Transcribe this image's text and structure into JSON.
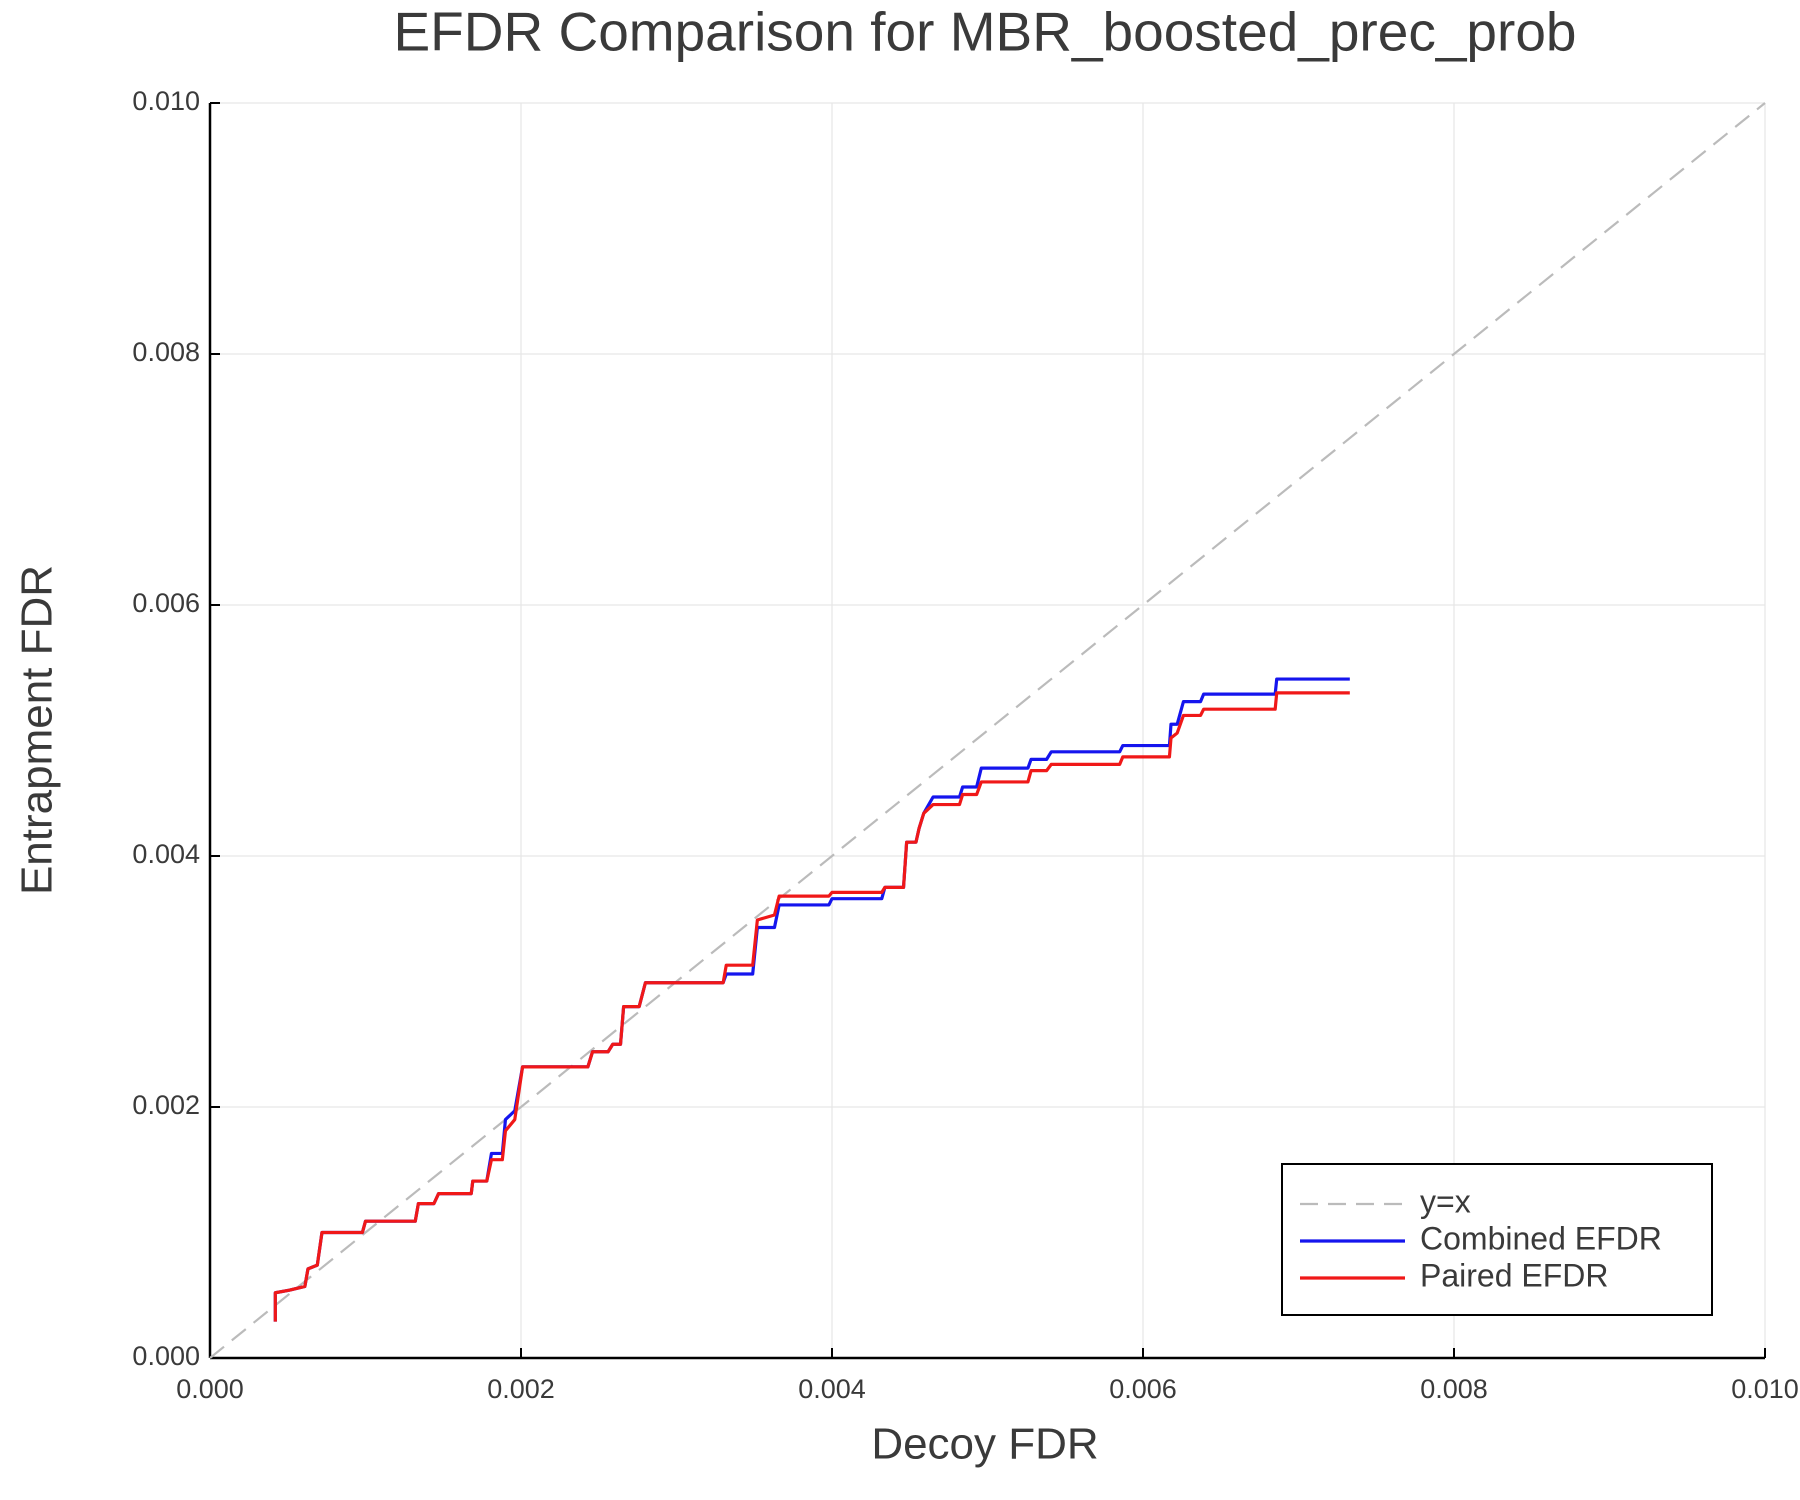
{
  "chart_data": {
    "type": "line",
    "title": "EFDR Comparison for MBR_boosted_prec_prob",
    "x_label": "Decoy FDR",
    "y_label": "Entrapment FDR",
    "xlim": [
      0,
      0.01
    ],
    "ylim": [
      0,
      0.01
    ],
    "xticks": [
      {
        "value": 0,
        "label": "0.000"
      },
      {
        "value": 0.002,
        "label": "0.002"
      },
      {
        "value": 0.004,
        "label": "0.004"
      },
      {
        "value": 0.006,
        "label": "0.006"
      },
      {
        "value": 0.008,
        "label": "0.008"
      },
      {
        "value": 0.01,
        "label": "0.010"
      }
    ],
    "yticks": [
      {
        "value": 0,
        "label": "0.000"
      },
      {
        "value": 0.002,
        "label": "0.002"
      },
      {
        "value": 0.004,
        "label": "0.004"
      },
      {
        "value": 0.006,
        "label": "0.006"
      },
      {
        "value": 0.008,
        "label": "0.008"
      },
      {
        "value": 0.01,
        "label": "0.010"
      }
    ],
    "grid": true,
    "legend_position": "bottom-right",
    "series": [
      {
        "name": "y=x",
        "color": "#bbbbbb",
        "style": "dash",
        "x": [
          0,
          0.01
        ],
        "values": [
          0,
          0.01
        ]
      },
      {
        "name": "Combined EFDR",
        "color": "#1515ee",
        "style": "solid",
        "x": [
          0.00042,
          0.00042,
          0.00051,
          0.00061,
          0.00063,
          0.00069,
          0.00072,
          0.00098,
          0.001,
          0.00132,
          0.00134,
          0.00144,
          0.00147,
          0.00168,
          0.00169,
          0.00178,
          0.00181,
          0.00188,
          0.0019,
          0.00196,
          0.00201,
          0.00243,
          0.00246,
          0.00256,
          0.00259,
          0.00264,
          0.00266,
          0.00276,
          0.0028,
          0.0033,
          0.00332,
          0.00349,
          0.00352,
          0.00363,
          0.00366,
          0.00398,
          0.004,
          0.00432,
          0.00434,
          0.00446,
          0.00448,
          0.00454,
          0.00456,
          0.00459,
          0.00465,
          0.00482,
          0.00484,
          0.00493,
          0.00496,
          0.00526,
          0.00528,
          0.00538,
          0.00541,
          0.00585,
          0.00587,
          0.00617,
          0.00618,
          0.00622,
          0.00626,
          0.00637,
          0.00639,
          0.00685,
          0.00686,
          0.00733
        ],
        "values": [
          0.00029,
          0.00052,
          0.00054,
          0.00057,
          0.00071,
          0.00074,
          0.001,
          0.001,
          0.00109,
          0.00109,
          0.00123,
          0.00123,
          0.00131,
          0.00131,
          0.00141,
          0.00141,
          0.00163,
          0.00163,
          0.0019,
          0.00197,
          0.00232,
          0.00232,
          0.00244,
          0.00244,
          0.0025,
          0.0025,
          0.0028,
          0.0028,
          0.00299,
          0.00299,
          0.00306,
          0.00306,
          0.00343,
          0.00343,
          0.00361,
          0.00361,
          0.00366,
          0.00366,
          0.00375,
          0.00375,
          0.00411,
          0.00411,
          0.00422,
          0.00434,
          0.00447,
          0.00447,
          0.00455,
          0.00455,
          0.0047,
          0.0047,
          0.00477,
          0.00477,
          0.00483,
          0.00483,
          0.00488,
          0.00488,
          0.00505,
          0.00505,
          0.00523,
          0.00523,
          0.00529,
          0.00529,
          0.00541,
          0.00541
        ]
      },
      {
        "name": "Paired EFDR",
        "color": "#f01818",
        "style": "solid",
        "x": [
          0.00042,
          0.00042,
          0.00051,
          0.00061,
          0.00063,
          0.00069,
          0.00072,
          0.00098,
          0.001,
          0.00132,
          0.00134,
          0.00144,
          0.00147,
          0.00168,
          0.00169,
          0.00178,
          0.00181,
          0.00188,
          0.0019,
          0.00196,
          0.00201,
          0.00243,
          0.00246,
          0.00256,
          0.00259,
          0.00264,
          0.00266,
          0.00276,
          0.0028,
          0.0033,
          0.00332,
          0.00349,
          0.00352,
          0.00363,
          0.00366,
          0.00398,
          0.004,
          0.00432,
          0.00434,
          0.00446,
          0.00448,
          0.00454,
          0.00456,
          0.00459,
          0.00465,
          0.00482,
          0.00484,
          0.00493,
          0.00496,
          0.00526,
          0.00528,
          0.00538,
          0.00541,
          0.00585,
          0.00587,
          0.00617,
          0.00618,
          0.00622,
          0.00626,
          0.00637,
          0.00639,
          0.00685,
          0.00686,
          0.00733
        ],
        "values": [
          0.00029,
          0.00052,
          0.00054,
          0.00057,
          0.00071,
          0.00074,
          0.001,
          0.001,
          0.00109,
          0.00109,
          0.00123,
          0.00123,
          0.00131,
          0.00131,
          0.00141,
          0.00141,
          0.00158,
          0.00158,
          0.00181,
          0.0019,
          0.00232,
          0.00232,
          0.00244,
          0.00244,
          0.0025,
          0.0025,
          0.0028,
          0.0028,
          0.00299,
          0.00299,
          0.00313,
          0.00313,
          0.00349,
          0.00353,
          0.00368,
          0.00368,
          0.00371,
          0.00371,
          0.00375,
          0.00375,
          0.00411,
          0.00411,
          0.00422,
          0.00434,
          0.00441,
          0.00441,
          0.00449,
          0.00449,
          0.00459,
          0.00459,
          0.00468,
          0.00468,
          0.00473,
          0.00473,
          0.00479,
          0.00479,
          0.00494,
          0.00498,
          0.00512,
          0.00512,
          0.00517,
          0.00517,
          0.0053,
          0.0053
        ]
      }
    ]
  }
}
